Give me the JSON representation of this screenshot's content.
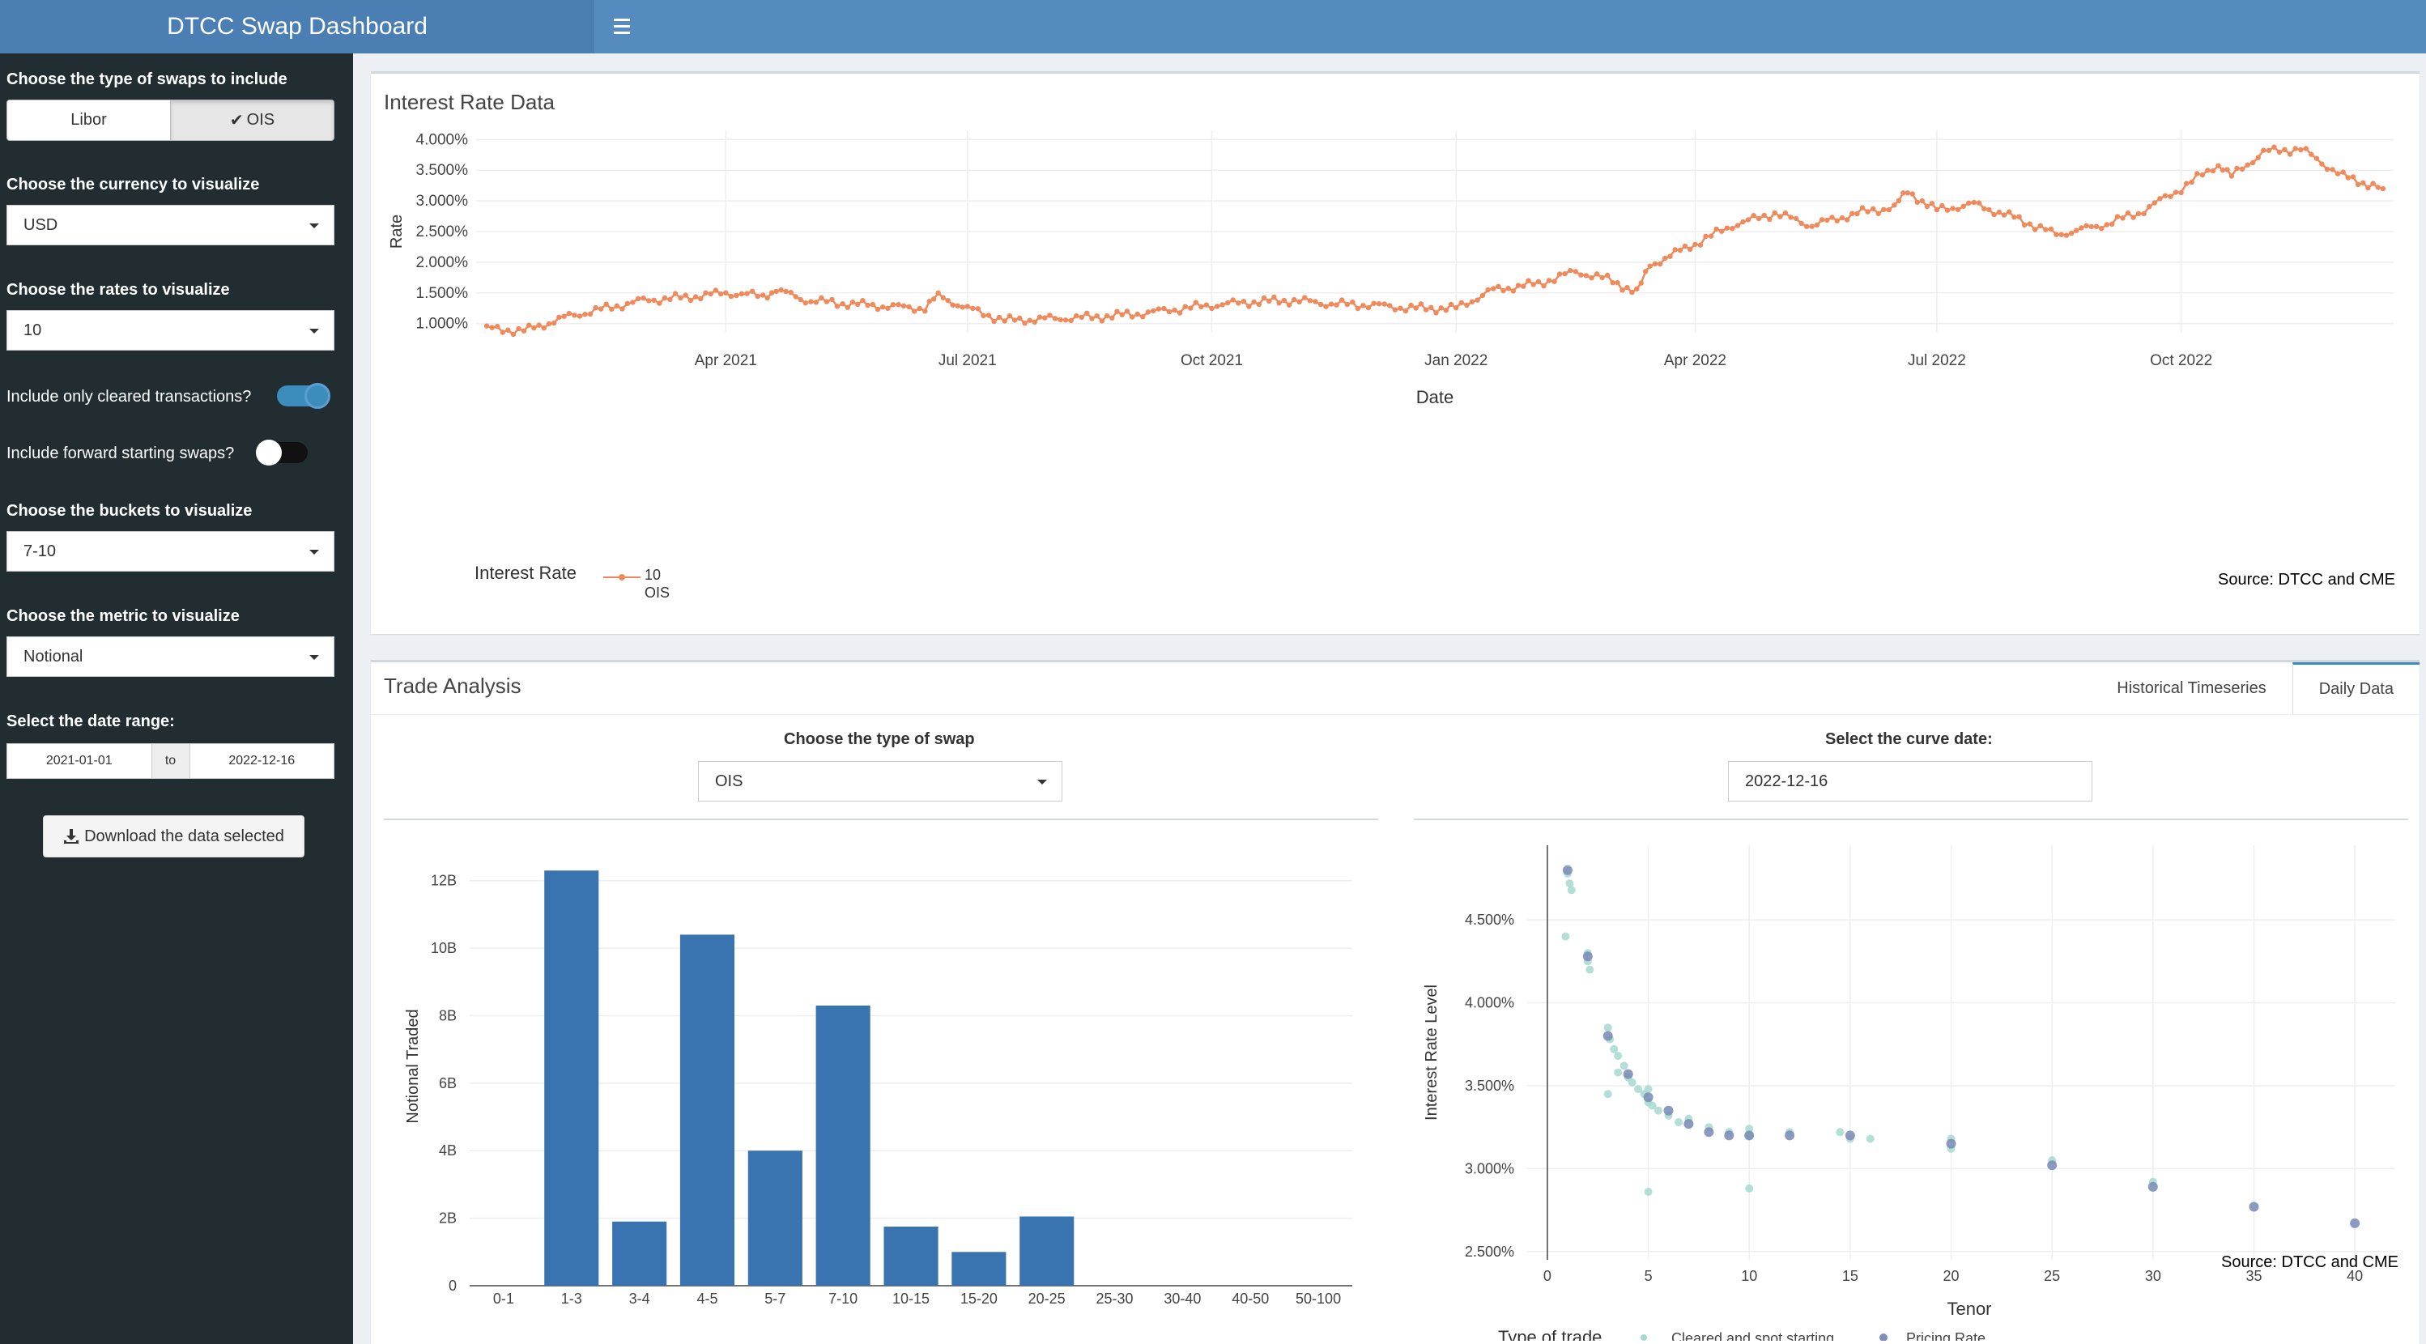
{
  "header": {
    "title": "DTCC Swap Dashboard",
    "menu_icon": "hamburger-icon"
  },
  "sidebar": {
    "swap_type_label": "Choose the type of swaps to include",
    "swap_type_options": [
      "Libor",
      "OIS"
    ],
    "swap_type_selected": "OIS",
    "currency_label": "Choose the currency to visualize",
    "currency_value": "USD",
    "rates_label": "Choose the rates to visualize",
    "rates_value": "10",
    "cleared_label": "Include only cleared transactions?",
    "cleared_on": true,
    "forward_label": "Include forward starting swaps?",
    "forward_on": false,
    "buckets_label": "Choose the buckets to visualize",
    "buckets_value": "7-10",
    "metric_label": "Choose the metric to visualize",
    "metric_value": "Notional",
    "date_label": "Select the date range:",
    "date_start": "2021-01-01",
    "date_sep": "to",
    "date_end": "2022-12-16",
    "download_label": "Download the data selected"
  },
  "interest_box": {
    "title": "Interest Rate Data",
    "legend_title": "Interest Rate",
    "legend_line1": "10",
    "legend_line2": "OIS",
    "source": "Source: DTCC and CME"
  },
  "trade_box": {
    "title": "Trade Analysis",
    "tabs": [
      "Historical Timeseries",
      "Daily Data"
    ],
    "active_tab": "Daily Data",
    "swap_type_label": "Choose the type of swap",
    "swap_type_value": "OIS",
    "curve_date_label": "Select the curve date:",
    "curve_date_value": "2022-12-16",
    "scatter_legend_title": "Type of trade",
    "scatter_source": "Source: DTCC and CME"
  },
  "colors": {
    "line": "#ef8a5c",
    "bar": "#3a74b0",
    "cleared": "#a6d9cf",
    "pricing": "#7d8fb9",
    "header": "#558bbf",
    "sidebar": "#222d32"
  },
  "chart_data": [
    {
      "type": "line",
      "xlabel": "Date",
      "ylabel": "Rate",
      "x_ticks": [
        "Apr 2021",
        "Jul 2021",
        "Oct 2021",
        "Jan 2022",
        "Apr 2022",
        "Jul 2022",
        "Oct 2022"
      ],
      "y_ticks": [
        "1.000%",
        "1.500%",
        "2.000%",
        "2.500%",
        "3.000%",
        "3.500%",
        "4.000%"
      ],
      "ylim": [
        0.85,
        4.15
      ],
      "series": [
        {
          "name": "10 OIS",
          "x": [
            "2021-01-01",
            "2021-01-15",
            "2021-02-01",
            "2021-02-15",
            "2021-03-01",
            "2021-03-15",
            "2021-04-01",
            "2021-04-15",
            "2021-04-20",
            "2021-05-01",
            "2021-05-15",
            "2021-06-01",
            "2021-06-15",
            "2021-06-20",
            "2021-07-01",
            "2021-07-15",
            "2021-08-01",
            "2021-08-15",
            "2021-09-01",
            "2021-09-15",
            "2021-10-01",
            "2021-10-15",
            "2021-11-01",
            "2021-11-15",
            "2021-12-01",
            "2021-12-15",
            "2022-01-01",
            "2022-01-15",
            "2022-02-01",
            "2022-02-15",
            "2022-03-01",
            "2022-03-10",
            "2022-03-15",
            "2022-04-01",
            "2022-04-15",
            "2022-05-01",
            "2022-05-15",
            "2022-06-01",
            "2022-06-15",
            "2022-06-20",
            "2022-07-01",
            "2022-07-15",
            "2022-08-01",
            "2022-08-15",
            "2022-09-01",
            "2022-09-15",
            "2022-10-01",
            "2022-10-15",
            "2022-10-20",
            "2022-11-01",
            "2022-11-15",
            "2022-12-01",
            "2022-12-16"
          ],
          "y": [
            0.92,
            0.88,
            1.12,
            1.25,
            1.38,
            1.42,
            1.5,
            1.45,
            1.55,
            1.38,
            1.33,
            1.28,
            1.25,
            1.45,
            1.25,
            1.05,
            1.08,
            1.1,
            1.15,
            1.22,
            1.3,
            1.35,
            1.38,
            1.32,
            1.3,
            1.25,
            1.25,
            1.55,
            1.65,
            1.85,
            1.7,
            1.5,
            1.95,
            2.3,
            2.6,
            2.8,
            2.6,
            2.8,
            2.9,
            3.15,
            2.85,
            2.95,
            2.7,
            2.45,
            2.6,
            2.8,
            3.2,
            3.6,
            3.4,
            3.8,
            3.85,
            3.4,
            3.2
          ]
        }
      ]
    },
    {
      "type": "bar",
      "xlabel": "",
      "ylabel": "Notional Traded",
      "categories": [
        "0-1",
        "1-3",
        "3-4",
        "4-5",
        "5-7",
        "7-10",
        "10-15",
        "15-20",
        "20-25",
        "25-30",
        "30-40",
        "40-50",
        "50-100"
      ],
      "values": [
        0,
        12.3,
        1.9,
        10.4,
        4.0,
        8.3,
        1.75,
        1.0,
        2.05,
        0,
        0,
        0,
        0
      ],
      "y_ticks": [
        "0",
        "2B",
        "4B",
        "6B",
        "8B",
        "10B",
        "12B"
      ],
      "ylim": [
        0,
        13
      ]
    },
    {
      "type": "scatter",
      "xlabel": "Tenor",
      "ylabel": "Interest Rate Level",
      "x_ticks": [
        "0",
        "5",
        "10",
        "15",
        "20",
        "25",
        "30",
        "35",
        "40"
      ],
      "y_ticks": [
        "2.500%",
        "3.000%",
        "3.500%",
        "4.000%",
        "4.500%"
      ],
      "xlim": [
        -1,
        42
      ],
      "ylim": [
        2.45,
        4.95
      ],
      "series": [
        {
          "name": "Cleared and spot starting",
          "x": [
            1,
            1.1,
            1.2,
            0.9,
            2,
            2,
            2.1,
            3,
            3.1,
            3.3,
            3.5,
            3.8,
            4,
            4.2,
            4.5,
            4.8,
            5,
            5,
            5.2,
            5.5,
            6,
            6.5,
            7,
            8,
            9,
            10,
            10,
            12,
            14.5,
            15,
            16,
            20,
            20,
            25,
            30,
            3,
            3.5,
            5,
            10
          ],
          "y": [
            4.78,
            4.72,
            4.68,
            4.4,
            4.3,
            4.25,
            4.2,
            3.85,
            3.78,
            3.72,
            3.68,
            3.62,
            3.55,
            3.52,
            3.48,
            3.45,
            3.48,
            3.4,
            3.38,
            3.35,
            3.32,
            3.28,
            3.3,
            3.25,
            3.22,
            3.24,
            3.2,
            3.22,
            3.22,
            3.18,
            3.18,
            3.18,
            3.12,
            3.05,
            2.92,
            3.45,
            3.58,
            2.86,
            2.88
          ]
        },
        {
          "name": "Pricing Rate",
          "x": [
            1,
            2,
            3,
            4,
            5,
            6,
            7,
            8,
            9,
            10,
            12,
            15,
            20,
            25,
            30,
            35,
            40
          ],
          "y": [
            4.8,
            4.28,
            3.8,
            3.57,
            3.43,
            3.35,
            3.27,
            3.22,
            3.2,
            3.2,
            3.2,
            3.2,
            3.15,
            3.02,
            2.89,
            2.77,
            2.67
          ]
        }
      ]
    }
  ]
}
